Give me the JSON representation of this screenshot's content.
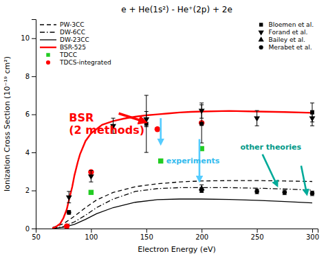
{
  "chart_data": {
    "type": "line",
    "title": "e + He(1s²) - He⁺(2p) + 2e",
    "xlabel": "Electron Energy (eV)",
    "ylabel": "Ionization Cross Section (10⁻¹⁹ cm²)",
    "xlim": [
      50,
      305
    ],
    "ylim": [
      0,
      11
    ],
    "xticks": [
      50,
      100,
      150,
      200,
      250,
      300
    ],
    "yticks": [
      0,
      2,
      4,
      6,
      8,
      10
    ],
    "legend": "upper left",
    "series": [
      {
        "name": "PW-3CC",
        "type": "line",
        "color": "#000000",
        "line_style": "dashed",
        "x": [
          65,
          75,
          85,
          95,
          105,
          120,
          140,
          160,
          180,
          200,
          225,
          250,
          275,
          300
        ],
        "values": [
          0.05,
          0.25,
          0.65,
          1.1,
          1.5,
          1.9,
          2.2,
          2.35,
          2.45,
          2.5,
          2.52,
          2.52,
          2.5,
          2.47
        ]
      },
      {
        "name": "DW-6CC",
        "type": "line",
        "color": "#000000",
        "line_style": "dashdot",
        "x": [
          65,
          75,
          85,
          95,
          105,
          120,
          140,
          160,
          180,
          200,
          225,
          250,
          275,
          300
        ],
        "values": [
          0.02,
          0.1,
          0.35,
          0.7,
          1.1,
          1.55,
          1.95,
          2.1,
          2.15,
          2.15,
          2.15,
          2.12,
          2.08,
          2.02
        ]
      },
      {
        "name": "DW-23CC",
        "type": "line",
        "color": "#000000",
        "line_style": "solid",
        "x": [
          65,
          75,
          85,
          95,
          105,
          120,
          140,
          160,
          180,
          200,
          225,
          250,
          275,
          300
        ],
        "values": [
          0.01,
          0.07,
          0.22,
          0.48,
          0.78,
          1.1,
          1.38,
          1.52,
          1.55,
          1.55,
          1.53,
          1.48,
          1.42,
          1.35
        ]
      },
      {
        "name": "BSR-525",
        "type": "line",
        "color": "#ff0000",
        "line_style": "solid",
        "x": [
          65,
          68,
          72,
          75,
          78,
          80,
          83,
          85,
          88,
          90,
          95,
          100,
          110,
          120,
          130,
          140,
          150,
          160,
          170,
          180,
          190,
          200,
          225,
          250,
          275,
          300
        ],
        "values": [
          0.02,
          0.08,
          0.25,
          0.55,
          1.0,
          1.5,
          2.2,
          2.8,
          3.5,
          3.9,
          4.6,
          5.0,
          5.45,
          5.65,
          5.78,
          5.88,
          5.95,
          6.0,
          6.05,
          6.1,
          6.13,
          6.15,
          6.18,
          6.15,
          6.12,
          6.08
        ]
      },
      {
        "name": "TDCC",
        "type": "scatter",
        "color": "#22cc22",
        "marker": "square",
        "x": [
          100,
          200
        ],
        "values": [
          1.9,
          4.2
        ]
      },
      {
        "name": "TDCS-integrated",
        "type": "scatter",
        "color": "#ff0000",
        "marker": "circle",
        "x": [
          78,
          100,
          160,
          200
        ],
        "values": [
          0.12,
          2.97,
          5.22,
          5.55
        ]
      },
      {
        "name": "Bloemen et al.",
        "type": "scatter",
        "color": "#000000",
        "marker": "square",
        "x": [
          150,
          200,
          300
        ],
        "values": [
          5.5,
          5.5,
          6.1
        ],
        "error_low": [
          1.5,
          1.0,
          0.5
        ],
        "error_high": [
          1.5,
          1.0,
          0.5
        ]
      },
      {
        "name": "Forand et al.",
        "type": "scatter",
        "color": "#000000",
        "marker": "triangle-down",
        "x": [
          80,
          100,
          120,
          150,
          200,
          250,
          300
        ],
        "values": [
          1.65,
          2.75,
          5.4,
          5.75,
          6.2,
          5.8,
          5.8
        ],
        "errors": [
          0.3,
          0.3,
          0.4,
          0.4,
          0.4,
          0.4,
          0.4
        ]
      },
      {
        "name": "Bailey et al.",
        "type": "scatter",
        "color": "#000000",
        "marker": "triangle-up",
        "x": [
          200
        ],
        "values": [
          2.1
        ],
        "errors": [
          0.2
        ]
      },
      {
        "name": "Merabet et al.",
        "type": "scatter",
        "color": "#000000",
        "marker": "circle",
        "x": [
          80,
          200,
          250,
          275,
          300
        ],
        "values": [
          0.85,
          2.02,
          1.95,
          1.9,
          1.85
        ],
        "errors": [
          0.1,
          0.12,
          0.12,
          0.12,
          0.12
        ]
      }
    ],
    "annotations": [
      {
        "text": "BSR\n(2 methods)",
        "x": 80,
        "y": 5.5,
        "color": "#ff0000",
        "arrows": [
          {
            "from": [
              125,
              6.05
            ],
            "to": [
              148,
              5.62
            ],
            "color": "#ff0000"
          }
        ]
      },
      {
        "text": "experiments",
        "x": 168,
        "y": 3.55,
        "color": "#33bbee",
        "arrows": [
          {
            "from": [
              163,
              5.8
            ],
            "to": [
              163,
              4.5
            ],
            "color": "#55ccff"
          },
          {
            "from": [
              198,
              4.7
            ],
            "to": [
              198,
              2.55
            ],
            "color": "#55ccff"
          }
        ],
        "points": [
          {
            "x": 163,
            "y": 3.55,
            "color": "#22cc22",
            "marker": "square"
          }
        ]
      },
      {
        "text": "other theories",
        "x": 235,
        "y": 4.3,
        "color": "#009988",
        "arrows": [
          {
            "from": [
              255,
              3.9
            ],
            "to": [
              268,
              2.3
            ],
            "color": "#00aa99"
          },
          {
            "from": [
              290,
              3.3
            ],
            "to": [
              295,
              1.85
            ],
            "color": "#00aa99"
          }
        ]
      }
    ]
  }
}
